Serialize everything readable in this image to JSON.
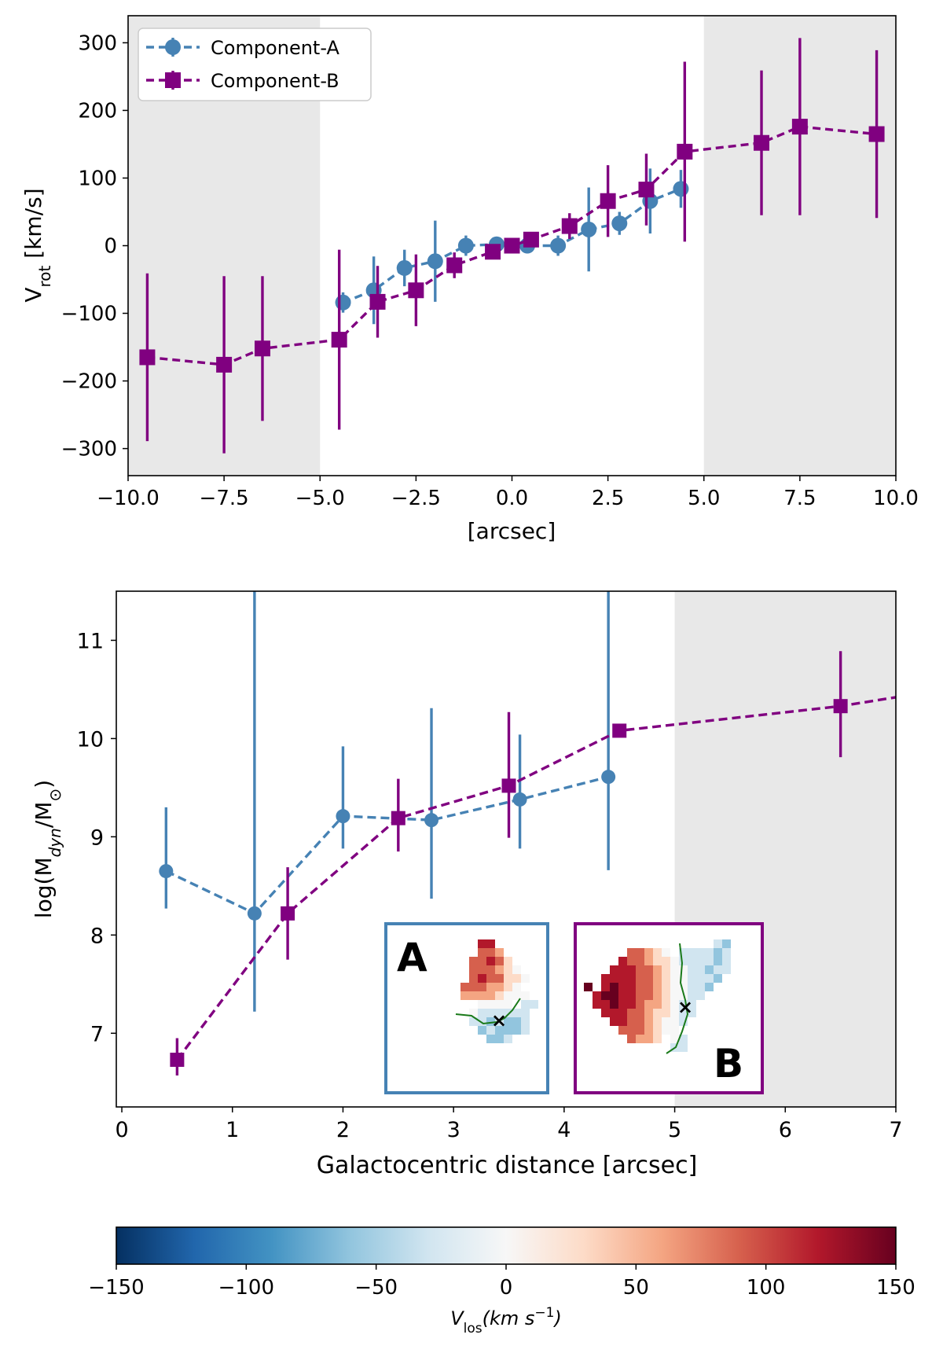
{
  "colors": {
    "component_a": "#4682b4",
    "component_b": "#800080",
    "shade": "#e8e8e8",
    "center_marker": "#8b0000",
    "contour": "#1a7a1a"
  },
  "chart_data": [
    {
      "id": "rotation-curve",
      "type": "line",
      "title": "",
      "xlabel": "[arcsec]",
      "ylabel_main": "V",
      "ylabel_sub": "rot",
      "ylabel_unit": " [km/s]",
      "xlim": [
        -10.0,
        10.0
      ],
      "ylim": [
        -340,
        340
      ],
      "xticks": [
        -10.0,
        -7.5,
        -5.0,
        -2.5,
        0.0,
        2.5,
        5.0,
        7.5,
        10.0
      ],
      "xtick_labels": [
        "−10.0",
        "−7.5",
        "−5.0",
        "−2.5",
        "0.0",
        "2.5",
        "5.0",
        "7.5",
        "10.0"
      ],
      "yticks": [
        -300,
        -200,
        -100,
        0,
        100,
        200,
        300
      ],
      "ytick_labels": [
        "−300",
        "−200",
        "−100",
        "0",
        "100",
        "200",
        "300"
      ],
      "shaded_regions": [
        [
          -10.0,
          -5.0
        ],
        [
          5.0,
          10.0
        ]
      ],
      "legend_position": "upper-left",
      "series": [
        {
          "name": "Component-A",
          "marker": "circle",
          "x": [
            -4.4,
            -3.6,
            -2.8,
            -2.0,
            -1.2,
            -0.4,
            0.4,
            1.2,
            2.0,
            2.8,
            3.6,
            4.4
          ],
          "y": [
            -84,
            -66,
            -33,
            -23,
            0,
            2,
            0,
            0,
            24,
            33,
            66,
            84
          ],
          "err": [
            15,
            50,
            27,
            60,
            15,
            9,
            9,
            15,
            62,
            17,
            48,
            28
          ]
        },
        {
          "name": "Component-B",
          "marker": "square",
          "x": [
            -9.5,
            -7.5,
            -6.5,
            -4.5,
            -3.5,
            -2.5,
            -1.5,
            -0.5,
            0.0,
            0.5,
            1.5,
            2.5,
            3.5,
            4.5,
            6.5,
            7.5,
            9.5
          ],
          "y": [
            -165,
            -176,
            -152,
            -139,
            -83,
            -66,
            -29,
            -9,
            0,
            9,
            29,
            66,
            83,
            139,
            152,
            176,
            165
          ],
          "err": [
            124,
            131,
            107,
            133,
            53,
            53,
            19,
            8,
            6,
            8,
            19,
            53,
            53,
            133,
            107,
            131,
            124
          ]
        }
      ]
    },
    {
      "id": "dynamical-mass",
      "type": "line",
      "title": "",
      "xlabel": "Galactocentric distance [arcsec]",
      "ylabel": "log(M",
      "ylabel_sub1": "dyn",
      "ylabel_mid": "/M",
      "ylabel_sub2": "⊙",
      "ylabel_end": ")",
      "xlim": [
        -0.05,
        7.0
      ],
      "ylim": [
        6.25,
        11.5
      ],
      "xticks": [
        0,
        1,
        2,
        3,
        4,
        5,
        6,
        7
      ],
      "xtick_labels": [
        "0",
        "1",
        "2",
        "3",
        "4",
        "5",
        "6",
        "7"
      ],
      "yticks": [
        7,
        8,
        9,
        10,
        11
      ],
      "ytick_labels": [
        "7",
        "8",
        "9",
        "10",
        "11"
      ],
      "shaded_regions": [
        [
          5.0,
          7.0
        ]
      ],
      "series": [
        {
          "name": "Component-A",
          "marker": "circle",
          "x": [
            0.4,
            1.2,
            2.0,
            2.8,
            3.6,
            4.4
          ],
          "y": [
            8.65,
            8.22,
            9.21,
            9.17,
            9.38,
            9.61
          ],
          "err_low": [
            0.38,
            1.0,
            0.33,
            0.8,
            0.5,
            0.95
          ],
          "err_high": [
            0.65,
            3.6,
            0.71,
            1.14,
            0.66,
            2.2
          ]
        },
        {
          "name": "Component-B",
          "marker": "square",
          "x": [
            0.5,
            1.5,
            2.5,
            3.5,
            4.5,
            6.5,
            7.0
          ],
          "y": [
            6.73,
            8.22,
            9.19,
            9.52,
            10.08,
            10.33,
            10.42
          ],
          "err_low": [
            0.16,
            0.47,
            0.34,
            0.53,
            0,
            0.52,
            0
          ],
          "err_high": [
            0.22,
            0.47,
            0.4,
            0.75,
            0,
            0.56,
            0
          ]
        }
      ],
      "insets": [
        {
          "label": "A",
          "label_position": "top-left"
        },
        {
          "label": "B",
          "label_position": "bottom-right"
        }
      ]
    },
    {
      "id": "colorbar",
      "type": "heatmap",
      "label_main": "V",
      "label_sub": "los",
      "label_unit": "(km s",
      "label_exp": "−1",
      "label_close": ")",
      "range": [
        -150,
        150
      ],
      "colormap": "RdBu_r",
      "ticks": [
        -150,
        -100,
        -50,
        0,
        50,
        100,
        150
      ],
      "tick_labels": [
        "−150",
        "−100",
        "−50",
        "0",
        "50",
        "100",
        "150"
      ]
    }
  ]
}
